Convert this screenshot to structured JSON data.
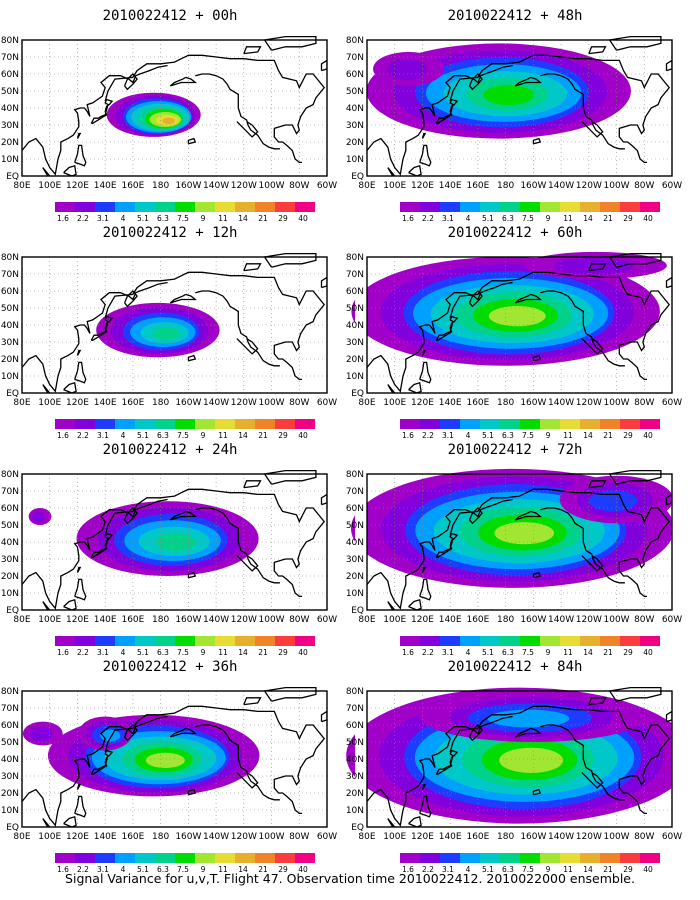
{
  "figure": {
    "footer": "Signal Variance for u,v,T. Flight 47. Observation time 2010022412. 2010022000 ensemble."
  },
  "map": {
    "lat_labels": [
      "80N",
      "70N",
      "60N",
      "50N",
      "40N",
      "30N",
      "20N",
      "10N",
      "EQ"
    ],
    "lon_labels": [
      "80E",
      "100E",
      "120E",
      "140E",
      "160E",
      "180",
      "160W",
      "140W",
      "120W",
      "100W",
      "80W",
      "60W"
    ],
    "lon_range": [
      80,
      300
    ],
    "lat_range": [
      0,
      80
    ]
  },
  "colorbar": {
    "levels": [
      "1.6",
      "2.2",
      "3.1",
      "4",
      "5.1",
      "6.3",
      "7.5",
      "9",
      "11",
      "14",
      "21",
      "29",
      "40"
    ],
    "colors": [
      "#a000c8",
      "#8200dc",
      "#1e3cff",
      "#00a0ff",
      "#00c8c8",
      "#00d28c",
      "#00dc00",
      "#a0e632",
      "#e6dc32",
      "#e6af2d",
      "#f08228",
      "#fa3c3c",
      "#f00082"
    ]
  },
  "panels": [
    {
      "title": "2010022412 + 00h",
      "blobs": [
        {
          "lon": 175,
          "lat": 36,
          "rx": 32,
          "ry": 13,
          "max": 9
        }
      ]
    },
    {
      "title": "2010022412 + 12h",
      "blobs": [
        {
          "lon": 178,
          "lat": 37,
          "rx": 42,
          "ry": 16,
          "max": 5
        }
      ]
    },
    {
      "title": "2010022412 + 24h",
      "blobs": [
        {
          "lon": 185,
          "lat": 42,
          "rx": 62,
          "ry": 22,
          "max": 5
        },
        {
          "lon": 93,
          "lat": 55,
          "rx": 8,
          "ry": 5,
          "max": 1
        }
      ]
    },
    {
      "title": "2010022412 + 36h",
      "blobs": [
        {
          "lon": 175,
          "lat": 42,
          "rx": 72,
          "ry": 24,
          "max": 7
        },
        {
          "lon": 95,
          "lat": 55,
          "rx": 14,
          "ry": 7,
          "max": 1
        },
        {
          "lon": 140,
          "lat": 55,
          "rx": 20,
          "ry": 10,
          "max": 3
        }
      ]
    },
    {
      "title": "2010022412 + 48h",
      "blobs": [
        {
          "lon": 175,
          "lat": 50,
          "rx": 90,
          "ry": 28,
          "max": 6
        },
        {
          "lon": 110,
          "lat": 63,
          "rx": 25,
          "ry": 10,
          "max": 1
        }
      ]
    },
    {
      "title": "2010022412 + 60h",
      "blobs": [
        {
          "lon": 180,
          "lat": 48,
          "rx": 105,
          "ry": 32,
          "max": 7
        },
        {
          "lon": 245,
          "lat": 75,
          "rx": 50,
          "ry": 8,
          "max": 1
        }
      ]
    },
    {
      "title": "2010022412 + 72h",
      "blobs": [
        {
          "lon": 185,
          "lat": 48,
          "rx": 110,
          "ry": 35,
          "max": 7
        },
        {
          "lon": 260,
          "lat": 65,
          "rx": 40,
          "ry": 14,
          "max": 2
        }
      ]
    },
    {
      "title": "2010022412 + 84h",
      "blobs": [
        {
          "lon": 190,
          "lat": 42,
          "rx": 118,
          "ry": 40,
          "max": 7
        },
        {
          "lon": 200,
          "lat": 65,
          "rx": 80,
          "ry": 15,
          "max": 3
        }
      ]
    }
  ]
}
